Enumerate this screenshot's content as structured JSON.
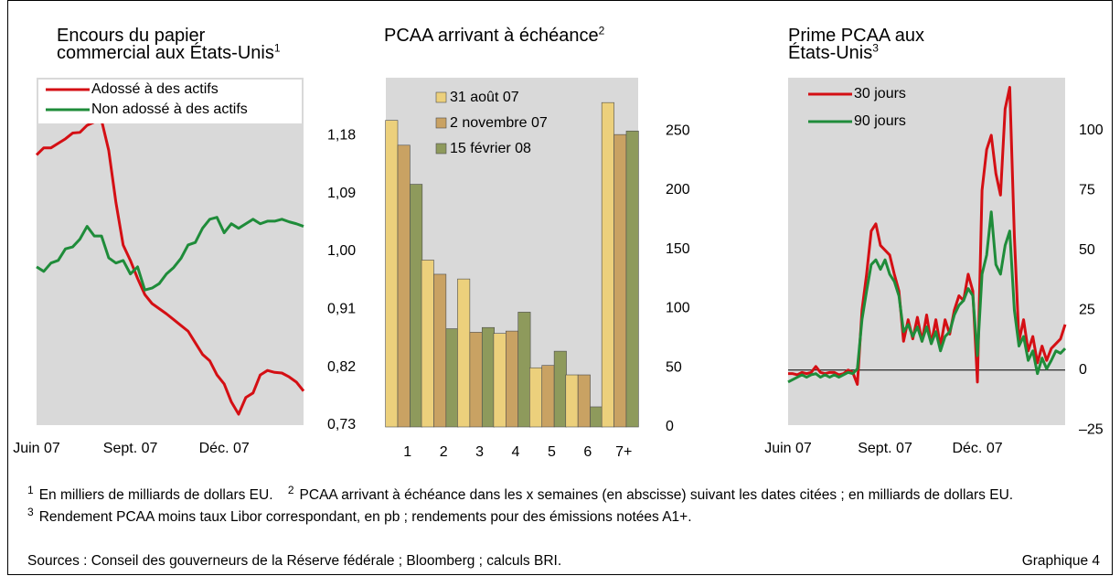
{
  "chart_data": [
    {
      "type": "line",
      "title": "Encours du papier commercial aux États-Unis",
      "title_note": "1",
      "axis_side": "right",
      "background": "#d9d9d9",
      "legend": "upper left",
      "legend_frame": true,
      "xlim": [
        0,
        37
      ],
      "xticks": [
        {
          "value": 0,
          "label": "Juin 07"
        },
        {
          "value": 13,
          "label": "Sept. 07"
        },
        {
          "value": 26,
          "label": "Déc. 07"
        }
      ],
      "ylim": [
        0.73,
        1.27
      ],
      "yticks": [
        {
          "value": 0.73,
          "label": "0,73"
        },
        {
          "value": 0.82,
          "label": "0,82"
        },
        {
          "value": 0.91,
          "label": "0,91"
        },
        {
          "value": 1.0,
          "label": "1,00"
        },
        {
          "value": 1.09,
          "label": "1,09"
        },
        {
          "value": 1.18,
          "label": "1,18"
        }
      ],
      "series": [
        {
          "name": "Adossé à des actifs",
          "color": "#d40f14",
          "values": [
            1.15,
            1.161,
            1.161,
            1.168,
            1.175,
            1.184,
            1.185,
            1.196,
            1.201,
            1.204,
            1.157,
            1.076,
            1.01,
            0.986,
            0.958,
            0.933,
            0.919,
            0.911,
            0.903,
            0.894,
            0.885,
            0.876,
            0.858,
            0.84,
            0.83,
            0.808,
            0.794,
            0.766,
            0.747,
            0.773,
            0.78,
            0.808,
            0.815,
            0.812,
            0.811,
            0.805,
            0.797,
            0.783
          ]
        },
        {
          "name": "Non adossé à des actifs",
          "color": "#1f8c3a",
          "values": [
            0.976,
            0.969,
            0.982,
            0.986,
            1.004,
            1.007,
            1.019,
            1.039,
            1.024,
            1.024,
            0.99,
            0.982,
            0.986,
            0.965,
            0.976,
            0.94,
            0.943,
            0.95,
            0.965,
            0.975,
            0.989,
            1.01,
            1.014,
            1.036,
            1.05,
            1.053,
            1.029,
            1.043,
            1.036,
            1.043,
            1.05,
            1.043,
            1.047,
            1.047,
            1.05,
            1.046,
            1.043,
            1.039
          ]
        }
      ]
    },
    {
      "type": "bar",
      "title": "PCAA arrivant à échéance",
      "title_note": "2",
      "axis_side": "right",
      "background": "#d9d9d9",
      "legend": "upper left",
      "legend_frame": false,
      "categories": [
        "1",
        "2",
        "3",
        "4",
        "5",
        "6",
        "7+"
      ],
      "ylim": [
        0,
        295
      ],
      "yticks": [
        0,
        50,
        100,
        150,
        200,
        250
      ],
      "series": [
        {
          "name": "31 août 07",
          "color": "#ecd07c",
          "values": [
            259,
            141,
            125,
            79,
            50,
            44,
            274
          ]
        },
        {
          "name": "2 novembre 07",
          "color": "#c9a263",
          "values": [
            238,
            129,
            80,
            81,
            52,
            44,
            247
          ]
        },
        {
          "name": "15 février 08",
          "color": "#8e9a5c",
          "values": [
            205,
            83,
            84,
            97,
            64,
            17,
            250
          ]
        }
      ]
    },
    {
      "type": "line",
      "title": "Prime PCAA aux États-Unis",
      "title_note": "3",
      "axis_side": "right",
      "background": "#d9d9d9",
      "legend": "upper left",
      "legend_frame": false,
      "zero_line": true,
      "xlim": [
        0,
        60
      ],
      "xticks": [
        {
          "value": 0,
          "label": "Juin 07"
        },
        {
          "value": 21,
          "label": "Sept. 07"
        },
        {
          "value": 41,
          "label": "Déc. 07"
        }
      ],
      "ylim": [
        -23,
        122
      ],
      "yticks": [
        {
          "value": -25,
          "label": "–25"
        },
        0,
        25,
        50,
        75,
        100
      ],
      "series": [
        {
          "name": "30 jours",
          "color": "#d40f14",
          "values": [
            -1.5,
            -1.5,
            -2,
            -1,
            -1.5,
            -1,
            1.5,
            -1,
            -1.5,
            -1,
            -1,
            -2,
            -1.5,
            0,
            -1,
            -6,
            25,
            40,
            58,
            61,
            52,
            50,
            48,
            40,
            33,
            12,
            21,
            13,
            22,
            12,
            23,
            11,
            21,
            10,
            21,
            15,
            25,
            31,
            29,
            40,
            33,
            -5,
            75,
            92,
            98,
            82,
            73,
            109,
            118,
            56,
            12,
            21,
            8,
            14,
            3,
            10,
            4,
            9,
            11,
            13,
            19
          ]
        },
        {
          "name": "90 jours",
          "color": "#1f8c3a",
          "values": [
            -5,
            -4,
            -3,
            -2,
            -3,
            -2,
            -1.5,
            -3,
            -2,
            -3,
            -2,
            -3,
            -2,
            -1,
            -1.5,
            0.5,
            21,
            33,
            44,
            46,
            42,
            46,
            40,
            37,
            31,
            16,
            19,
            14,
            18,
            12,
            18,
            11,
            16,
            8,
            14,
            16,
            23,
            27,
            29,
            34,
            31,
            6,
            40,
            48,
            66,
            44,
            40,
            52,
            58,
            25,
            10,
            14,
            4,
            8,
            -1.5,
            5,
            0.5,
            4,
            8,
            7,
            9
          ]
        }
      ]
    }
  ],
  "footnotes": [
    {
      "marker": "1",
      "text": "En milliers de milliards de dollars EU."
    },
    {
      "marker": "2",
      "text": "PCAA arrivant à échéance dans les x semaines (en abscisse) suivant les dates citées ; en milliards de dollars EU."
    },
    {
      "marker": "3",
      "text": "Rendement PCAA moins taux Libor correspondant, en pb ; rendements pour des émissions notées A1+."
    }
  ],
  "sources": "Sources : Conseil des gouverneurs de la Réserve fédérale ; Bloomberg ; calculs BRI.",
  "figure_label": "Graphique 4"
}
